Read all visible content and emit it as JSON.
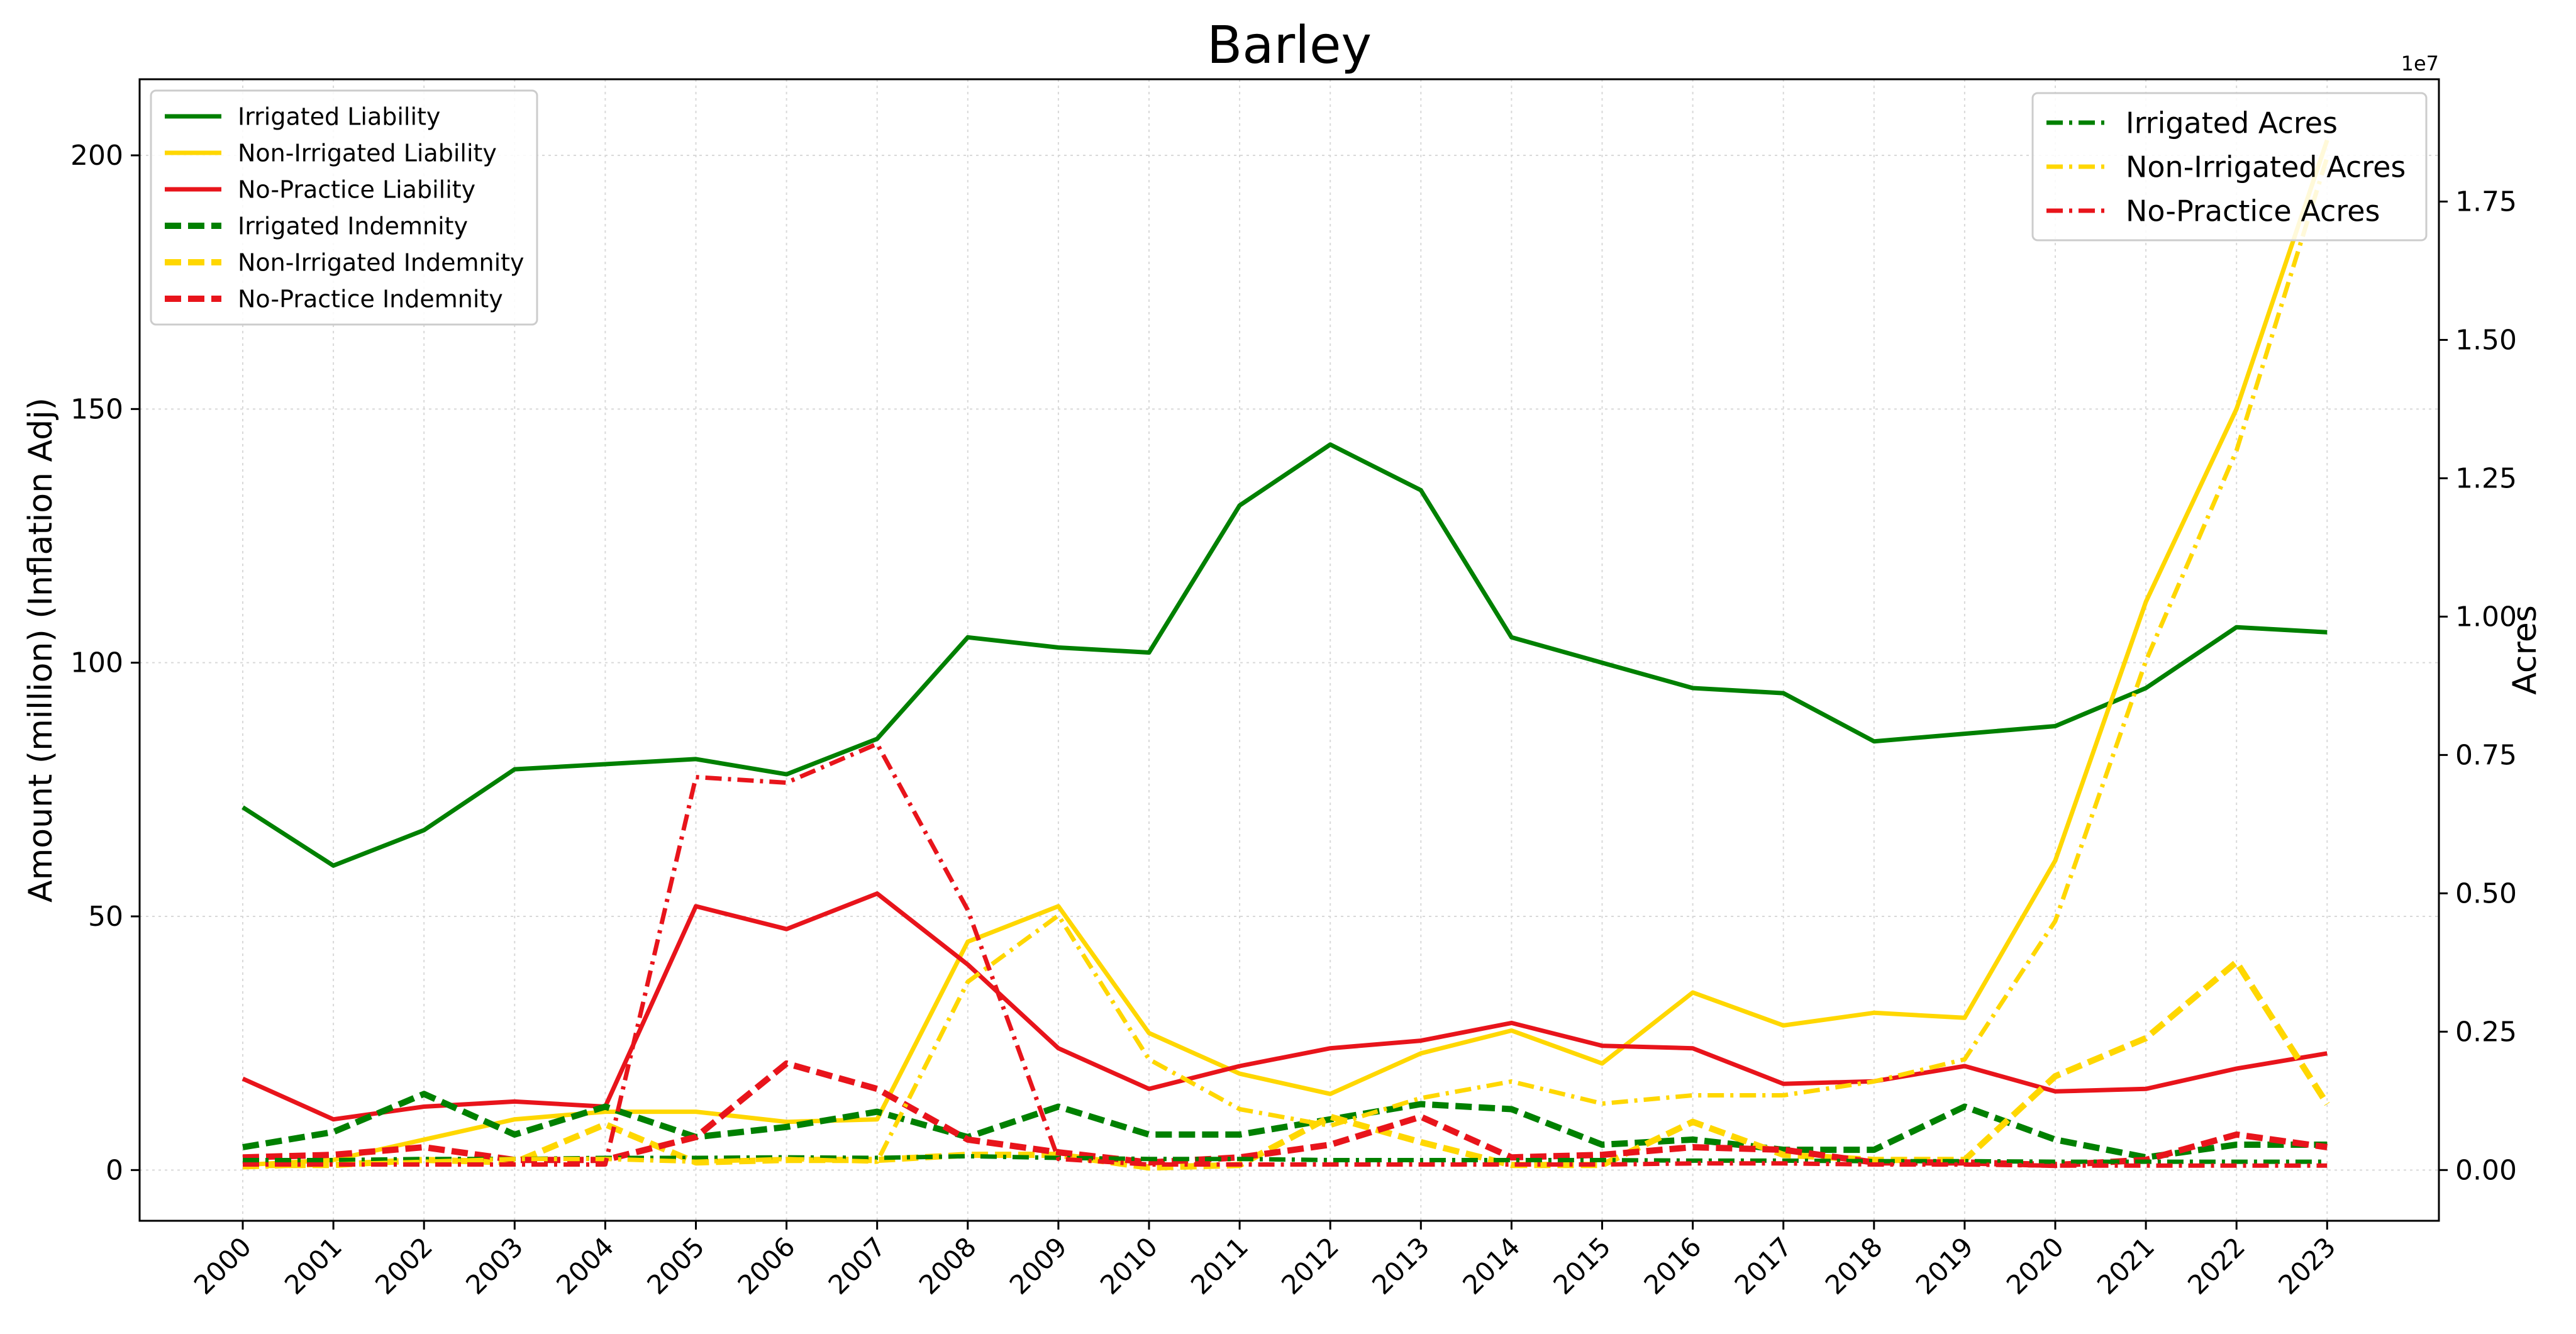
{
  "chart_data": {
    "type": "line",
    "title": "Barley",
    "ylabel": "Amount (million) (Inflation Adj)",
    "y2label": "Acres",
    "y2_multiplier": "1e7",
    "x": [
      "2000",
      "2001",
      "2002",
      "2003",
      "2004",
      "2005",
      "2006",
      "2007",
      "2008",
      "2009",
      "2010",
      "2011",
      "2012",
      "2013",
      "2014",
      "2015",
      "2016",
      "2017",
      "2018",
      "2019",
      "2020",
      "2021",
      "2022",
      "2023"
    ],
    "ylim": [
      -10,
      215
    ],
    "yticks": [
      0,
      50,
      100,
      150,
      200
    ],
    "y2lim": [
      -0.0917,
      1.971
    ],
    "y2ticks": [
      0.0,
      0.25,
      0.5,
      0.75,
      1.0,
      1.25,
      1.5,
      1.75
    ],
    "y2ticklabels": [
      "0.00",
      "0.25",
      "0.50",
      "0.75",
      "1.00",
      "1.25",
      "1.50",
      "1.75"
    ],
    "grid": true,
    "legend_left_placement": "top-left",
    "legend_right_placement": "top-right",
    "series": [
      {
        "name": "Irrigated Liability",
        "axis": "left",
        "style": "solid",
        "color": "#008000",
        "values": [
          71.5,
          60,
          67,
          79,
          80,
          81,
          78,
          85,
          105,
          103,
          102,
          131,
          143,
          134,
          105,
          100,
          95,
          94,
          84.5,
          86,
          87.5,
          95,
          107,
          106
        ]
      },
      {
        "name": "Non-Irrigated Liability",
        "axis": "left",
        "style": "solid",
        "color": "#FFD700",
        "values": [
          1,
          2,
          6,
          10,
          11.5,
          11.5,
          9.5,
          10,
          45,
          52,
          27,
          19,
          15,
          23,
          27.5,
          21,
          35,
          28.5,
          31,
          30,
          61,
          112,
          150,
          203
        ]
      },
      {
        "name": "No-Practice Liability",
        "axis": "left",
        "style": "solid",
        "color": "#E8141B",
        "values": [
          18,
          10,
          12.5,
          13.5,
          12.5,
          52,
          47.5,
          54.5,
          40.5,
          24,
          16,
          20.5,
          24,
          25.5,
          29,
          24.5,
          24,
          17,
          17.5,
          20.5,
          15.5,
          16,
          20,
          23
        ]
      },
      {
        "name": "Irrigated Indemnity",
        "axis": "left",
        "style": "dashed",
        "color": "#008000",
        "values": [
          4.5,
          7.5,
          15,
          7,
          12.5,
          6.5,
          8.5,
          11.5,
          6.5,
          12.5,
          7,
          7,
          10,
          13,
          12,
          5,
          6,
          4,
          4,
          12.5,
          6,
          2.5,
          5,
          5
        ]
      },
      {
        "name": "Non-Irrigated Indemnity",
        "axis": "left",
        "style": "dashed",
        "color": "#FFD700",
        "values": [
          1,
          1,
          2,
          1.5,
          9,
          1.5,
          2,
          2,
          3,
          3,
          0.5,
          1,
          10.5,
          5.5,
          1,
          1,
          9.5,
          3,
          2,
          2,
          18.5,
          26,
          41,
          13
        ]
      },
      {
        "name": "No-Practice Indemnity",
        "axis": "left",
        "style": "dashed",
        "color": "#E8141B",
        "values": [
          2.5,
          3,
          4.5,
          2,
          2,
          6.5,
          21,
          16,
          6,
          3.5,
          1.5,
          2.5,
          5,
          10.5,
          2.5,
          3,
          4.5,
          4,
          1.5,
          1.5,
          1,
          2,
          7,
          4.5
        ]
      },
      {
        "name": "Irrigated Acres",
        "axis": "right",
        "style": "dashdot",
        "color": "#008000",
        "values": [
          0.018,
          0.018,
          0.02,
          0.02,
          0.022,
          0.022,
          0.023,
          0.022,
          0.025,
          0.022,
          0.02,
          0.02,
          0.018,
          0.018,
          0.018,
          0.018,
          0.017,
          0.017,
          0.016,
          0.016,
          0.015,
          0.015,
          0.015,
          0.015
        ]
      },
      {
        "name": "Non-Irrigated Acres",
        "axis": "right",
        "style": "dashdot",
        "color": "#FFD700",
        "values": [
          0.005,
          0.01,
          0.015,
          0.02,
          0.02,
          0.015,
          0.02,
          0.015,
          0.34,
          0.46,
          0.2,
          0.11,
          0.08,
          0.13,
          0.16,
          0.12,
          0.135,
          0.135,
          0.16,
          0.2,
          0.45,
          0.92,
          1.3,
          1.83
        ]
      },
      {
        "name": "No-Practice Acres",
        "axis": "right",
        "style": "dashdot",
        "color": "#E8141B",
        "values": [
          0.01,
          0.01,
          0.01,
          0.01,
          0.01,
          0.71,
          0.7,
          0.77,
          0.47,
          0.02,
          0.01,
          0.01,
          0.01,
          0.01,
          0.01,
          0.01,
          0.012,
          0.012,
          0.01,
          0.01,
          0.008,
          0.008,
          0.008,
          0.008
        ]
      }
    ]
  }
}
